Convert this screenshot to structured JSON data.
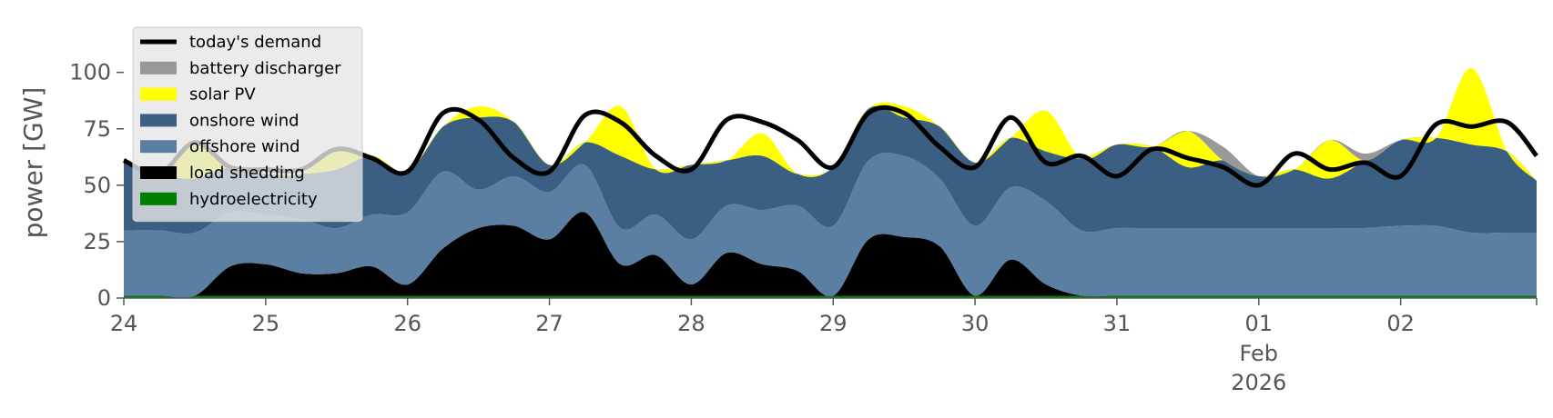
{
  "chart_data": {
    "type": "area",
    "ylabel": "power [GW]",
    "ylim": [
      0,
      120
    ],
    "xlim": [
      "2026-01-24T00:00",
      "2026-02-02T23:00"
    ],
    "y_ticks": [
      0,
      25,
      50,
      75,
      100
    ],
    "y_tick_labels": [
      "0",
      "25",
      "50",
      "75",
      "100"
    ],
    "x_ticks": [
      "2026-01-24",
      "2026-01-25",
      "2026-01-26",
      "2026-01-27",
      "2026-01-28",
      "2026-01-29",
      "2026-01-30",
      "2026-01-31",
      "2026-02-01",
      "2026-02-02"
    ],
    "x_tick_labels": [
      "24",
      "25",
      "26",
      "27",
      "28",
      "29",
      "30",
      "31",
      "01",
      "02"
    ],
    "x_month_label": "Feb",
    "x_year_label": "2026",
    "grid": false,
    "legend_position": "top-left",
    "x": [
      "2026-01-24T00:00",
      "2026-01-24T06:00",
      "2026-01-24T12:00",
      "2026-01-24T18:00",
      "2026-01-25T00:00",
      "2026-01-25T06:00",
      "2026-01-25T12:00",
      "2026-01-25T18:00",
      "2026-01-26T00:00",
      "2026-01-26T06:00",
      "2026-01-26T12:00",
      "2026-01-26T18:00",
      "2026-01-27T00:00",
      "2026-01-27T06:00",
      "2026-01-27T12:00",
      "2026-01-27T18:00",
      "2026-01-28T00:00",
      "2026-01-28T06:00",
      "2026-01-28T12:00",
      "2026-01-28T18:00",
      "2026-01-29T00:00",
      "2026-01-29T06:00",
      "2026-01-29T12:00",
      "2026-01-29T18:00",
      "2026-01-30T00:00",
      "2026-01-30T06:00",
      "2026-01-30T12:00",
      "2026-01-30T18:00",
      "2026-01-31T00:00",
      "2026-01-31T06:00",
      "2026-01-31T12:00",
      "2026-01-31T18:00",
      "2026-02-01T00:00",
      "2026-02-01T06:00",
      "2026-02-01T12:00",
      "2026-02-01T18:00",
      "2026-02-02T00:00",
      "2026-02-02T06:00",
      "2026-02-02T12:00",
      "2026-02-02T18:00",
      "2026-02-02T23:00"
    ],
    "series": [
      {
        "name": "hydroelectricity",
        "color": "#008000",
        "kind": "area",
        "values": [
          1,
          1,
          1,
          1,
          1,
          1,
          1,
          1,
          1,
          1,
          1,
          1,
          1,
          1,
          1,
          1,
          1,
          1,
          1,
          1,
          1,
          1,
          1,
          1,
          1,
          1,
          1,
          1,
          1,
          1,
          1,
          1,
          1,
          1,
          1,
          1,
          1,
          1,
          1,
          1,
          1
        ]
      },
      {
        "name": "load shedding",
        "color": "#000000",
        "kind": "area",
        "values": [
          0,
          0,
          0,
          13,
          14,
          10,
          10,
          13,
          5,
          21,
          30,
          31,
          25,
          37,
          14,
          18,
          5,
          19,
          14,
          11,
          0,
          25,
          26,
          22,
          0,
          16,
          5,
          0,
          0,
          0,
          0,
          0,
          0,
          0,
          0,
          0,
          0,
          0,
          0,
          0,
          0
        ]
      },
      {
        "name": "offshore wind",
        "color": "#5b7fa3",
        "kind": "area",
        "values": [
          29,
          29,
          28,
          24,
          22,
          24,
          20,
          23,
          32,
          34,
          17,
          22,
          21,
          21,
          16,
          18,
          20,
          21,
          24,
          29,
          31,
          35,
          36,
          30,
          31,
          32,
          37,
          29,
          30,
          30,
          30,
          30,
          30,
          30,
          30,
          30,
          31,
          31,
          28,
          28,
          28
        ]
      },
      {
        "name": "onshore wind",
        "color": "#3a5f82",
        "kind": "area",
        "values": [
          31,
          25,
          24,
          20,
          18,
          20,
          26,
          26,
          18,
          20,
          32,
          24,
          12,
          10,
          32,
          20,
          33,
          20,
          24,
          14,
          26,
          23,
          17,
          23,
          28,
          22,
          22,
          32,
          37,
          36,
          27,
          30,
          23,
          26,
          22,
          30,
          38,
          39,
          39,
          36,
          23
        ]
      },
      {
        "name": "solar PV",
        "color": "#ffff00",
        "kind": "area",
        "values": [
          0,
          0,
          16,
          0,
          0,
          0,
          9,
          0,
          0,
          0,
          5,
          0,
          0,
          0,
          22,
          0,
          0,
          0,
          10,
          0,
          0,
          0,
          5,
          0,
          0,
          0,
          18,
          0,
          0,
          0,
          16,
          0,
          0,
          0,
          17,
          0,
          0,
          0,
          34,
          0,
          0
        ]
      },
      {
        "name": "battery discharger",
        "color": "#999999",
        "kind": "area",
        "values": [
          0,
          0,
          0,
          0,
          0,
          0,
          0,
          0,
          0,
          0,
          0,
          0,
          0,
          0,
          0,
          0,
          0,
          0,
          0,
          0,
          0,
          0,
          0,
          0,
          0,
          0,
          0,
          0,
          0,
          0,
          0,
          6,
          0,
          0,
          0,
          3,
          0,
          0,
          0,
          0,
          0
        ]
      },
      {
        "name": "today's demand",
        "color": "#000000",
        "kind": "line",
        "values": [
          61,
          55,
          69,
          58,
          57,
          57,
          66,
          62,
          56,
          82,
          79,
          62,
          56,
          81,
          78,
          63,
          57,
          79,
          78,
          70,
          58,
          82,
          82,
          67,
          58,
          80,
          60,
          63,
          54,
          66,
          62,
          58,
          50,
          64,
          57,
          60,
          54,
          77,
          76,
          78,
          63
        ]
      }
    ]
  }
}
